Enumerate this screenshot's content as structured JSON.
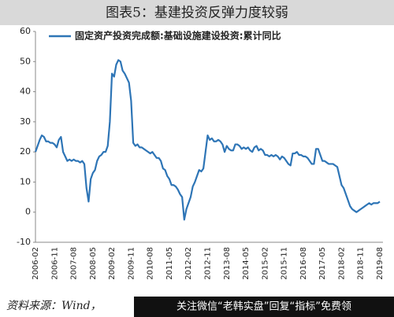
{
  "chart_data": {
    "type": "line",
    "title": "图表5：基建投资反弹力度较弱",
    "source": "资料来源：Wind，",
    "watermark": "关注微信“老韩实盘”回复“指标”免费领",
    "categories": [
      "2006-02",
      null,
      null,
      null,
      null,
      null,
      null,
      null,
      null,
      "2006-11",
      null,
      null,
      null,
      null,
      null,
      null,
      null,
      null,
      "2007-08",
      null,
      null,
      null,
      null,
      null,
      null,
      null,
      null,
      "2008-05",
      null,
      null,
      null,
      null,
      null,
      null,
      null,
      null,
      "2009-02",
      null,
      null,
      null,
      null,
      null,
      null,
      null,
      null,
      "2009-11",
      null,
      null,
      null,
      null,
      null,
      null,
      null,
      null,
      "2010-08",
      null,
      null,
      null,
      null,
      null,
      null,
      null,
      null,
      "2011-05",
      null,
      null,
      null,
      null,
      null,
      null,
      null,
      null,
      "2012-02",
      null,
      null,
      null,
      null,
      null,
      null,
      null,
      null,
      "2012-11",
      null,
      null,
      null,
      null,
      null,
      null,
      null,
      null,
      "2013-08",
      null,
      null,
      null,
      null,
      null,
      null,
      null,
      null,
      "2014-05",
      null,
      null,
      null,
      null,
      null,
      null,
      null,
      null,
      "2015-02",
      null,
      null,
      null,
      null,
      null,
      null,
      null,
      null,
      "2015-11",
      null,
      null,
      null,
      null,
      null,
      null,
      null,
      null,
      "2016-08",
      null,
      null,
      null,
      null,
      null,
      null,
      null,
      null,
      "2017-05",
      null,
      null,
      null,
      null,
      null,
      null,
      null,
      null,
      "2018-02",
      null,
      null,
      null,
      null,
      null,
      null,
      null,
      null,
      "2018-11",
      null,
      null,
      null,
      null,
      null,
      null,
      null,
      null,
      "2019-08"
    ],
    "series": [
      {
        "name": "固定资产投资完成额:基础设施建设投资:累计同比",
        "color": "#2e75b6",
        "values": [
          20,
          22,
          24,
          25.5,
          25,
          23.5,
          23.5,
          23,
          23,
          22.5,
          21.5,
          24,
          25,
          20,
          18.5,
          17,
          17.5,
          17,
          17.5,
          17,
          17,
          16.5,
          17,
          16,
          8,
          3.5,
          11,
          13,
          14,
          17,
          18.5,
          19,
          20,
          20,
          22,
          30,
          46,
          45,
          49,
          50.5,
          50,
          47,
          46,
          44.5,
          43,
          37,
          23,
          22,
          22.5,
          21.5,
          21.5,
          21,
          20.5,
          20,
          19.5,
          20,
          19,
          18,
          18,
          17,
          14.5,
          14,
          12,
          11,
          9,
          9,
          8.5,
          7.5,
          6,
          5,
          -2.5,
          1,
          3,
          5,
          8.5,
          10,
          12,
          14,
          13.5,
          14.5,
          20,
          25.5,
          24,
          24.5,
          23.5,
          23.5,
          24,
          23.5,
          22.5,
          20,
          22,
          21,
          20.5,
          20.5,
          22.5,
          22.5,
          22,
          21,
          21.5,
          21,
          21.5,
          20.5,
          20,
          21.5,
          22,
          20.5,
          21,
          20.5,
          19,
          19,
          18.5,
          19,
          18.5,
          19,
          18.5,
          17.5,
          18.5,
          18,
          17,
          16,
          15.5,
          19.5,
          19.5,
          20,
          19,
          19,
          18.5,
          18.5,
          18,
          17,
          16,
          16,
          21,
          21,
          19,
          17,
          17,
          16.5,
          16,
          16,
          16,
          15.5,
          15,
          12,
          9,
          8,
          6,
          4,
          2,
          1,
          0.5,
          0,
          0.5,
          1,
          1.5,
          2,
          2.5,
          3,
          2.5,
          3,
          3,
          3,
          3.5
        ]
      }
    ],
    "ylim": [
      -10,
      60
    ],
    "yticks": [
      -10,
      0,
      10,
      20,
      30,
      40,
      50,
      60
    ],
    "grid": false
  }
}
